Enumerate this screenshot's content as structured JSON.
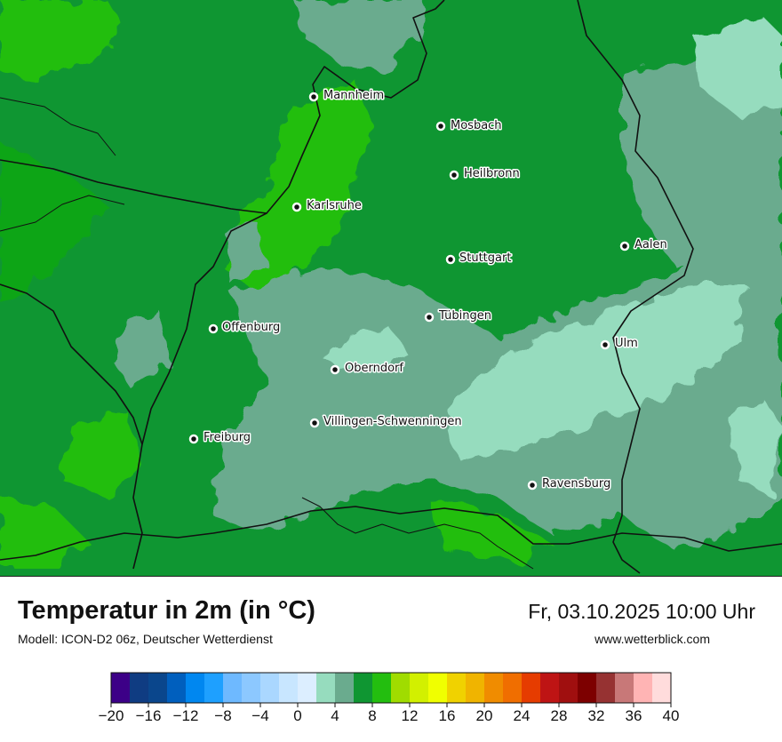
{
  "title": "Temperatur in 2m (in °C)",
  "model": "Modell: ICON-D2 06z, Deutscher Wetterdienst",
  "datetime": "Fr, 03.10.2025 10:00 Uhr",
  "website": "www.wetterblick.com",
  "cities": [
    {
      "name": "Mannheim"
    },
    {
      "name": "Mosbach"
    },
    {
      "name": "Heilbronn"
    },
    {
      "name": "Karlsruhe"
    },
    {
      "name": "Aalen"
    },
    {
      "name": "Stuttgart"
    },
    {
      "name": "Tübingen"
    },
    {
      "name": "Offenburg"
    },
    {
      "name": "Ulm"
    },
    {
      "name": "Oberndorf"
    },
    {
      "name": "Villingen-Schwenningen"
    },
    {
      "name": "Freiburg"
    },
    {
      "name": "Ravensburg"
    }
  ],
  "colors": {
    "temp_cool_2to4": "#6aab8e",
    "temp_cold_0to2": "#96dcbe",
    "temp_4to6": "#0f9632",
    "temp_6to8": "#0fa514",
    "temp_8to10": "#23be0f"
  },
  "legend": {
    "colors": [
      "#3c0087",
      "#0f3c82",
      "#0a468c",
      "#005fbe",
      "#0087f0",
      "#1ea0ff",
      "#6eb9ff",
      "#8cc8ff",
      "#aad7ff",
      "#c8e6ff",
      "#dceeff",
      "#96dcbe",
      "#6aab8e",
      "#0f9632",
      "#23be0f",
      "#a0dc00",
      "#d2f000",
      "#f0ff00",
      "#f0d200",
      "#f0b400",
      "#f08c00",
      "#f06e00",
      "#e63c00",
      "#be1414",
      "#a00f0f",
      "#7d0000",
      "#963232",
      "#c87878",
      "#ffb4b4",
      "#ffdcdc"
    ],
    "tick_labels": [
      "−20",
      "−16",
      "−12",
      "−8",
      "−4",
      "0",
      "4",
      "8",
      "12",
      "16",
      "20",
      "24",
      "28",
      "32",
      "36",
      "40"
    ]
  }
}
